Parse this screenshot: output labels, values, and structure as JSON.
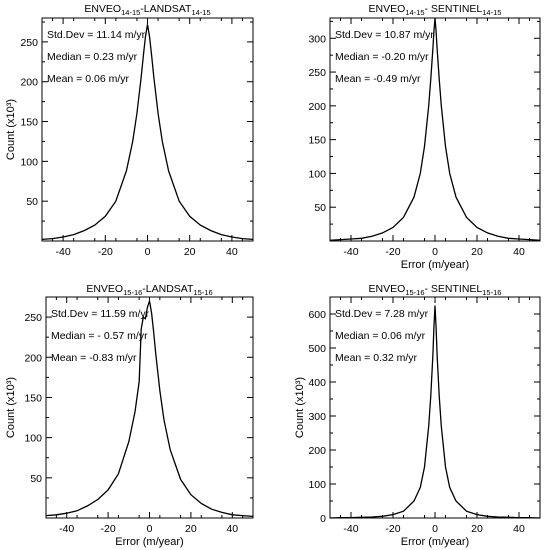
{
  "chart_data": [
    {
      "type": "line",
      "title": {
        "base1": "ENVEO",
        "sub1": "14-15",
        "sep": "-LANDSAT",
        "sub2": "14-15"
      },
      "xlabel": "",
      "ylabel": "Count (x10³)",
      "xlim": [
        -50,
        50
      ],
      "ylim": [
        0,
        280
      ],
      "x_ticks": [
        -40,
        -20,
        0,
        20,
        40
      ],
      "y_ticks": [
        50,
        100,
        150,
        200,
        250
      ],
      "grid": false,
      "stats": [
        "Std.Dev = 11.14 m/yr",
        "Median = 0.23 m/yr",
        "Mean = 0.06 m/yr"
      ],
      "series": [
        {
          "x": [
            -50,
            -45,
            -40,
            -35,
            -30,
            -25,
            -20,
            -15,
            -10,
            -7,
            -5,
            -3,
            -2,
            -1,
            0,
            1,
            2,
            3,
            5,
            7,
            10,
            15,
            20,
            25,
            30,
            35,
            40,
            45,
            50
          ],
          "values": [
            2,
            3,
            5,
            8,
            13,
            20,
            31,
            50,
            88,
            125,
            160,
            206,
            232,
            256,
            272,
            256,
            232,
            206,
            160,
            125,
            88,
            50,
            31,
            20,
            13,
            8,
            5,
            3,
            2
          ]
        }
      ]
    },
    {
      "type": "line",
      "title": {
        "base1": "ENVEO",
        "sub1": "14-15",
        "sep": "- SENTINEL",
        "sub2": "14-15"
      },
      "xlabel": "Error (m/year)",
      "ylabel": "",
      "xlim": [
        -50,
        50
      ],
      "ylim": [
        0,
        330
      ],
      "x_ticks": [
        -40,
        -20,
        0,
        20,
        40
      ],
      "y_ticks": [
        50,
        100,
        150,
        200,
        250,
        300
      ],
      "grid": false,
      "stats": [
        "Std.Dev =  10.87 m/yr",
        "Median = -0.20 m/yr",
        "Mean = -0.49 m/yr"
      ],
      "series": [
        {
          "x": [
            -50,
            -45,
            -40,
            -35,
            -30,
            -25,
            -20,
            -15,
            -10,
            -7,
            -5,
            -3,
            -2,
            -1,
            -0.5,
            0,
            0.5,
            1,
            2,
            3,
            5,
            7,
            10,
            15,
            20,
            25,
            30,
            35,
            40,
            45,
            50
          ],
          "values": [
            1,
            2,
            3,
            4,
            7,
            12,
            20,
            35,
            65,
            100,
            140,
            200,
            240,
            285,
            310,
            330,
            310,
            285,
            240,
            200,
            140,
            100,
            65,
            35,
            20,
            12,
            7,
            4,
            3,
            2,
            1
          ]
        }
      ]
    },
    {
      "type": "line",
      "title": {
        "base1": "ENVEO",
        "sub1": "15-16",
        "sep": "-LANDSAT",
        "sub2": "15-16"
      },
      "xlabel": "Error (m/year)",
      "ylabel": "Count (x10³)",
      "xlim": [
        -50,
        50
      ],
      "ylim": [
        0,
        275
      ],
      "x_ticks": [
        -40,
        -20,
        0,
        20,
        40
      ],
      "y_ticks": [
        50,
        100,
        150,
        200,
        250
      ],
      "grid": false,
      "stats": [
        "Std.Dev = 11.59 m/yr",
        "Median = - 0.57 m/yr",
        "Mean = -0.83 m/yr"
      ],
      "series": [
        {
          "x": [
            -50,
            -45,
            -40,
            -35,
            -30,
            -25,
            -20,
            -15,
            -10,
            -7,
            -5,
            -4,
            -3,
            -2,
            -1,
            0,
            1,
            2,
            3,
            5,
            7,
            10,
            15,
            20,
            25,
            30,
            35,
            40,
            45,
            50
          ],
          "values": [
            3,
            4,
            6,
            9,
            15,
            23,
            35,
            55,
            95,
            132,
            170,
            235,
            250,
            248,
            262,
            270,
            255,
            232,
            205,
            158,
            122,
            85,
            48,
            29,
            18,
            11,
            7,
            4,
            3,
            2
          ]
        }
      ]
    },
    {
      "type": "line",
      "title": {
        "base1": "ENVEO",
        "sub1": "15-16",
        "sep": "- SENTINEL",
        "sub2": "15-16"
      },
      "xlabel": "Error (m/year)",
      "ylabel": "Count (x10³)",
      "xlim": [
        -50,
        50
      ],
      "ylim": [
        0,
        650
      ],
      "x_ticks": [
        -40,
        -20,
        0,
        20,
        40
      ],
      "y_ticks": [
        0,
        100,
        200,
        300,
        400,
        500,
        600
      ],
      "grid": false,
      "stats": [
        "Std.Dev = 7.28 m/yr",
        "Median = 0.06 m/yr",
        "Mean = 0.32 m/yr"
      ],
      "series": [
        {
          "x": [
            -50,
            -45,
            -40,
            -35,
            -30,
            -25,
            -20,
            -15,
            -10,
            -7,
            -5,
            -3,
            -2,
            -1,
            -0.5,
            0,
            0.5,
            1,
            2,
            3,
            5,
            7,
            10,
            15,
            20,
            25,
            30,
            35,
            40,
            45,
            50
          ],
          "values": [
            0,
            1,
            1,
            2,
            3,
            5,
            10,
            20,
            50,
            90,
            150,
            270,
            360,
            480,
            560,
            625,
            560,
            480,
            360,
            270,
            150,
            90,
            50,
            20,
            10,
            5,
            3,
            2,
            1,
            1,
            0
          ]
        }
      ]
    }
  ]
}
